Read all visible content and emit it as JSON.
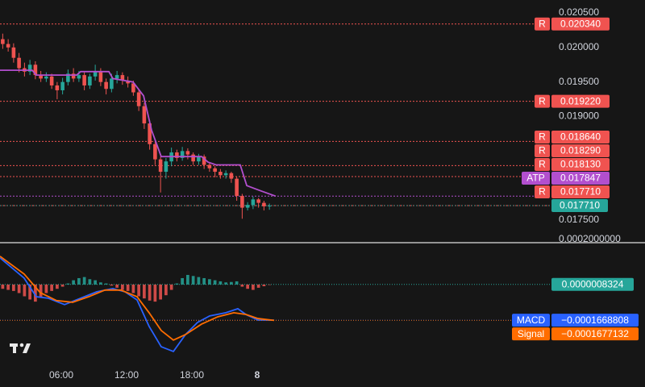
{
  "chart_data": [
    {
      "type": "candlestick",
      "up_color": "#26a69a",
      "down_color": "#ef5350",
      "xlim": [
        0,
        50.59
      ],
      "ylim": [
        0.017185,
        0.020687
      ],
      "yticks": [
        {
          "value": 0.0205,
          "label": "0.020500"
        },
        {
          "value": 0.02,
          "label": "0.020000"
        },
        {
          "value": 0.0195,
          "label": "0.019500"
        },
        {
          "value": 0.019,
          "label": "0.019000"
        },
        {
          "value": 0.0175,
          "label": "0.017500"
        }
      ],
      "x": [
        0.25,
        0.75,
        1.25,
        1.75,
        2.25,
        2.75,
        3.25,
        3.75,
        4.25,
        4.75,
        5.25,
        5.75,
        6.25,
        6.75,
        7.25,
        7.75,
        8.25,
        8.75,
        9.25,
        9.75,
        10.25,
        10.75,
        11.25,
        11.75,
        12.25,
        12.75,
        13.25,
        13.75,
        14.25,
        14.75,
        15.25,
        15.75,
        16.25,
        16.75,
        17.25,
        17.75,
        18.25,
        18.75,
        19.25,
        19.75,
        20.25,
        20.75,
        21.25,
        21.75,
        22.25,
        22.75,
        23.25,
        23.75,
        24.25,
        24.75
      ],
      "open": [
        0.02012,
        0.02005,
        0.02,
        0.01985,
        0.0197,
        0.01965,
        0.01975,
        0.0196,
        0.01955,
        0.01958,
        0.01945,
        0.01938,
        0.0195,
        0.01962,
        0.01955,
        0.0196,
        0.01945,
        0.01958,
        0.01965,
        0.0195,
        0.0194,
        0.01955,
        0.0196,
        0.01952,
        0.01948,
        0.01935,
        0.01915,
        0.0189,
        0.0186,
        0.01838,
        0.0182,
        0.01835,
        0.01848,
        0.0184,
        0.0185,
        0.01845,
        0.01835,
        0.01842,
        0.0183,
        0.01825,
        0.0182,
        0.01815,
        0.01818,
        0.0181,
        0.01785,
        0.01768,
        0.01772,
        0.0178,
        0.01775,
        0.0177
      ],
      "high": [
        0.0202,
        0.02012,
        0.02006,
        0.01992,
        0.01978,
        0.01982,
        0.0198,
        0.01966,
        0.01964,
        0.01962,
        0.0195,
        0.01956,
        0.01968,
        0.0197,
        0.01966,
        0.01964,
        0.01962,
        0.01975,
        0.0197,
        0.01955,
        0.01962,
        0.01966,
        0.01964,
        0.01958,
        0.01952,
        0.0194,
        0.0192,
        0.01895,
        0.01866,
        0.01842,
        0.0184,
        0.01855,
        0.01852,
        0.01856,
        0.01854,
        0.01848,
        0.01846,
        0.01845,
        0.01834,
        0.01828,
        0.01824,
        0.01822,
        0.0182,
        0.01813,
        0.01788,
        0.01776,
        0.01784,
        0.01782,
        0.01778,
        0.01774
      ],
      "low": [
        0.01998,
        0.01994,
        0.01978,
        0.01964,
        0.01958,
        0.0196,
        0.01954,
        0.0195,
        0.0195,
        0.0194,
        0.01925,
        0.01932,
        0.01945,
        0.0195,
        0.0195,
        0.01938,
        0.0194,
        0.01952,
        0.01944,
        0.01932,
        0.01935,
        0.01948,
        0.01946,
        0.01942,
        0.0193,
        0.01908,
        0.01882,
        0.01852,
        0.0183,
        0.0179,
        0.0181,
        0.01828,
        0.01835,
        0.01836,
        0.01838,
        0.0183,
        0.0183,
        0.01824,
        0.0182,
        0.01812,
        0.0181,
        0.0181,
        0.01804,
        0.01778,
        0.01752,
        0.01764,
        0.01766,
        0.01768,
        0.01764,
        0.01765
      ],
      "close": [
        0.02005,
        0.02,
        0.01985,
        0.0197,
        0.01965,
        0.01975,
        0.0196,
        0.01955,
        0.01958,
        0.01945,
        0.01938,
        0.0195,
        0.01962,
        0.01955,
        0.0196,
        0.01945,
        0.01958,
        0.01965,
        0.0195,
        0.0194,
        0.01955,
        0.0196,
        0.01952,
        0.01948,
        0.01935,
        0.01915,
        0.0189,
        0.0186,
        0.01838,
        0.0182,
        0.01835,
        0.01848,
        0.0184,
        0.0185,
        0.01845,
        0.01835,
        0.01842,
        0.0183,
        0.01825,
        0.0182,
        0.01815,
        0.01818,
        0.0181,
        0.01785,
        0.01768,
        0.01772,
        0.0178,
        0.01775,
        0.0177,
        0.01771
      ],
      "atp_line": {
        "color": "#b24fce",
        "x": [
          0,
          2.96,
          3.33,
          7.04,
          7.41,
          10,
          10.37,
          12.22,
          13.19,
          13.93,
          14.81,
          18.52,
          19.11,
          19.85,
          22.07,
          22.67,
          23.85,
          25.33
        ],
        "values": [
          0.01967,
          0.01967,
          0.0196,
          0.0196,
          0.01965,
          0.01965,
          0.01955,
          0.0195,
          0.0193,
          0.0188,
          0.01842,
          0.01842,
          0.01834,
          0.0183,
          0.0183,
          0.018,
          0.01793,
          0.017847
        ]
      },
      "levels": [
        {
          "tag": "R",
          "value": 0.02034,
          "label": "0.020340",
          "color": "#f05350"
        },
        {
          "tag": "R",
          "value": 0.01922,
          "label": "0.019220",
          "color": "#f05350"
        },
        {
          "tag": "R",
          "value": 0.01864,
          "label": "0.018640",
          "color": "#f05350"
        },
        {
          "tag": "R",
          "value": 0.01829,
          "label": "0.018290",
          "color": "#f05350"
        },
        {
          "tag": "R",
          "value": 0.01813,
          "label": "0.018130",
          "color": "#f05350"
        },
        {
          "tag": "ATP",
          "value": 0.017847,
          "label": "0.017847",
          "color": "#b24fce"
        },
        {
          "tag": "R",
          "value": 0.01771,
          "label": "0.017710",
          "color": "#f05350"
        }
      ],
      "last_price": {
        "value": 0.01771,
        "label": "0.017710",
        "color": "#26a69a"
      }
    },
    {
      "type": "macd",
      "xlim": [
        0,
        50.59
      ],
      "ylim": [
        -0.000385,
        0.000192
      ],
      "yticks": [
        {
          "value": 0.0002,
          "label": "0.0002000000"
        }
      ],
      "xticks": [
        {
          "value": 5.63,
          "label": "06:00"
        },
        {
          "value": 11.63,
          "label": "12:00"
        },
        {
          "value": 17.63,
          "label": "18:00"
        },
        {
          "value": 23.63,
          "label": "8"
        }
      ],
      "zero": {
        "value": 8.324e-07,
        "label": "0.0000008324",
        "color": "#26a69a"
      },
      "histogram": {
        "up_color": "#26a69a",
        "down_color": "#ef5350",
        "x": [
          0.25,
          0.75,
          1.25,
          1.75,
          2.25,
          2.75,
          3.25,
          3.75,
          4.25,
          4.75,
          5.25,
          5.75,
          6.25,
          6.75,
          7.25,
          7.75,
          8.25,
          8.75,
          9.25,
          9.75,
          10.25,
          10.75,
          11.25,
          11.75,
          12.25,
          12.75,
          13.25,
          13.75,
          14.25,
          14.75,
          15.25,
          15.75,
          16.25,
          16.75,
          17.25,
          17.75,
          18.25,
          18.75,
          19.25,
          19.75,
          20.25,
          20.75,
          21.25,
          21.75,
          22.25,
          22.75,
          23.25,
          23.75,
          24.25,
          24.75
        ],
        "values": [
          -2e-05,
          -2.5e-05,
          -3e-05,
          -4e-05,
          -5.5e-05,
          -7e-05,
          -8e-05,
          -6e-05,
          -4e-05,
          -3e-05,
          -2e-05,
          -1e-05,
          5e-06,
          2e-05,
          3e-05,
          3.5e-05,
          2.5e-05,
          2e-05,
          1e-05,
          5e-06,
          -5e-06,
          -1.5e-05,
          -2.5e-05,
          -3e-05,
          -4e-05,
          -5.5e-05,
          -6.5e-05,
          -7.5e-05,
          -8e-05,
          -7e-05,
          -5e-05,
          -2.5e-05,
          5e-06,
          3e-05,
          4.5e-05,
          4e-05,
          3.5e-05,
          3e-05,
          2.5e-05,
          2e-05,
          1.5e-05,
          1e-05,
          1.2e-05,
          1.5e-05,
          -1e-05,
          -2e-05,
          -2.5e-05,
          -1.5e-05,
          -8e-06,
          -2e-06
        ]
      },
      "series": [
        {
          "name": "MACD",
          "color": "#2962ff",
          "value_label": "−0.0001668808",
          "x": [
            0,
            2.22,
            3.33,
            4.44,
            5.93,
            7.41,
            8.89,
            10.37,
            11.48,
            12.59,
            13.7,
            14.81,
            15.93,
            17.04,
            18.15,
            19.26,
            20.74,
            21.85,
            22.59,
            23.7,
            25.19
          ],
          "values": [
            0.000125,
            3e-05,
            -5.7e-05,
            -6.4e-05,
            -9.4e-05,
            -6.4e-05,
            -3.4e-05,
            -1.9e-05,
            -3.4e-05,
            -7.2e-05,
            -0.000196,
            -0.000291,
            -0.000313,
            -0.000234,
            -0.000177,
            -0.000147,
            -0.000132,
            -0.000113,
            -0.00014,
            -0.000166,
            -0.0001668808
          ]
        },
        {
          "name": "Signal",
          "color": "#ff6d00",
          "value_label": "−0.0001677132",
          "x": [
            0,
            2.22,
            3.7,
            5.19,
            6.67,
            8.15,
            9.63,
            11.11,
            12.59,
            13.7,
            14.81,
            15.93,
            17.04,
            18.52,
            20,
            21.48,
            22.59,
            23.7,
            25.19
          ],
          "values": [
            0.000132,
            4.9e-05,
            -3.8e-05,
            -7.5e-05,
            -8.3e-05,
            -5.7e-05,
            -2.6e-05,
            -2.6e-05,
            -5.7e-05,
            -0.000132,
            -0.000215,
            -0.00026,
            -0.000234,
            -0.000185,
            -0.000151,
            -0.000132,
            -0.00014,
            -0.000159,
            -0.0001677132
          ]
        }
      ]
    }
  ]
}
